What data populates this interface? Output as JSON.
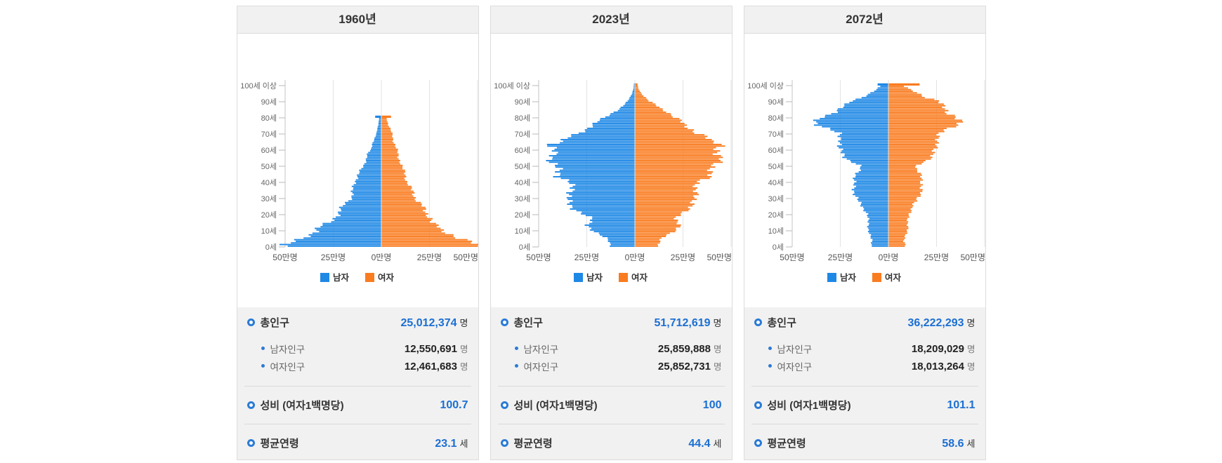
{
  "colors": {
    "male": "#1E88E5",
    "female": "#F97C20",
    "value_blue": "#1b6fd3"
  },
  "labels": {
    "total": "총인구",
    "male_pop": "남자인구",
    "female_pop": "여자인구",
    "sex_ratio": "성비 (여자1백명당)",
    "avg_age": "평균연령",
    "person_unit": "명",
    "age_unit": "세",
    "legend_male": "남자",
    "legend_female": "여자"
  },
  "panels": [
    {
      "title": "1960년",
      "total": "25,012,374",
      "male": "12,550,691",
      "female": "12,461,683",
      "sex_ratio": "100.7",
      "avg_age": "23.1"
    },
    {
      "title": "2023년",
      "total": "51,712,619",
      "male": "25,859,888",
      "female": "25,852,731",
      "sex_ratio": "100",
      "avg_age": "44.4"
    },
    {
      "title": "2072년",
      "total": "36,222,293",
      "male": "18,209,029",
      "female": "18,013,264",
      "sex_ratio": "101.1",
      "avg_age": "58.6"
    }
  ],
  "chart_data": [
    {
      "type": "population-pyramid",
      "title": "1960년",
      "x_axis": {
        "labels": [
          "50만명",
          "25만명",
          "0만명",
          "25만명",
          "50만명"
        ],
        "max_abs": 50,
        "unit": "만명"
      },
      "y_axis": {
        "labels_bottom_to_top": [
          "0세",
          "10세",
          "20세",
          "30세",
          "40세",
          "50세",
          "60세",
          "70세",
          "80세",
          "90세",
          "100세 이상"
        ],
        "range": [
          0,
          100
        ]
      },
      "legend": [
        {
          "name": "남자",
          "color": "#1E88E5"
        },
        {
          "name": "여자",
          "color": "#F97C20"
        }
      ],
      "series": {
        "unit": "만명",
        "anchor_ages": [
          0,
          1,
          3,
          5,
          8,
          10,
          12,
          14,
          15,
          17,
          19,
          22,
          25,
          28,
          30,
          33,
          35,
          38,
          40,
          43,
          45,
          48,
          50,
          53,
          55,
          58,
          60,
          63,
          65,
          68,
          70,
          73,
          75,
          77,
          79,
          80
        ],
        "male": [
          48.5,
          49.5,
          44,
          40,
          36,
          34,
          32,
          28,
          25.5,
          24.5,
          23,
          21.5,
          19.5,
          17,
          15.5,
          15,
          14.5,
          14,
          13.5,
          12.5,
          11.5,
          10,
          9,
          8,
          7.5,
          6.5,
          5,
          4.8,
          4,
          2.8,
          2.3,
          1.9,
          1.5,
          1.2,
          1,
          2.8
        ],
        "female": [
          48,
          50,
          44.5,
          39.5,
          35,
          31.5,
          29.5,
          26.5,
          25.5,
          25.5,
          24.5,
          22.5,
          21,
          18.5,
          17.5,
          16.5,
          15.5,
          14,
          13,
          12.5,
          12,
          11,
          10.5,
          9.5,
          8.5,
          8.2,
          8,
          7,
          6,
          5.5,
          5.3,
          4.5,
          3.5,
          3,
          2.5,
          4.5
        ]
      }
    },
    {
      "type": "population-pyramid",
      "title": "2023년",
      "x_axis": {
        "labels": [
          "50만명",
          "25만명",
          "0만명",
          "25만명",
          "50만명"
        ],
        "max_abs": 50,
        "unit": "만명"
      },
      "y_axis": {
        "labels_bottom_to_top": [
          "0세",
          "10세",
          "20세",
          "30세",
          "40세",
          "50세",
          "60세",
          "70세",
          "80세",
          "90세",
          "100세 이상"
        ],
        "range": [
          0,
          100
        ]
      },
      "legend": [
        {
          "name": "남자",
          "color": "#1E88E5"
        },
        {
          "name": "여자",
          "color": "#F97C20"
        }
      ],
      "series": {
        "unit": "만명",
        "anchor_ages": [
          0,
          3,
          5,
          8,
          10,
          13,
          15,
          17,
          20,
          23,
          25,
          28,
          30,
          33,
          35,
          38,
          40,
          43,
          45,
          48,
          50,
          52,
          54,
          55,
          57,
          60,
          62,
          63,
          65,
          68,
          70,
          72,
          75,
          78,
          80,
          83,
          85,
          88,
          90,
          93,
          95,
          98,
          100
        ],
        "male": [
          12,
          13,
          15,
          20,
          22,
          24,
          23,
          22.5,
          27,
          31,
          33,
          35,
          35,
          33,
          31,
          33,
          35,
          40,
          38,
          39,
          42,
          45,
          44,
          42,
          40,
          42,
          46,
          45,
          37,
          33,
          29,
          26,
          22,
          18,
          15,
          11,
          8,
          5,
          3.5,
          2,
          1.2,
          0.5,
          0.3
        ],
        "female": [
          11.5,
          12.5,
          14,
          19,
          21,
          22.5,
          22,
          21.5,
          24,
          27,
          29,
          31,
          32,
          31,
          30,
          32,
          34,
          39,
          37.5,
          39,
          42,
          44.5,
          45,
          43,
          41,
          43,
          46,
          46.5,
          39,
          36,
          32,
          30,
          26,
          23,
          20,
          17,
          14,
          10,
          7,
          4.5,
          3,
          1.5,
          1.2
        ]
      }
    },
    {
      "type": "population-pyramid",
      "title": "2072년",
      "x_axis": {
        "labels": [
          "50만명",
          "25만명",
          "0만명",
          "25만명",
          "50만명"
        ],
        "max_abs": 50,
        "unit": "만명"
      },
      "y_axis": {
        "labels_bottom_to_top": [
          "0세",
          "10세",
          "20세",
          "30세",
          "40세",
          "50세",
          "60세",
          "70세",
          "80세",
          "90세",
          "100세 이상"
        ],
        "range": [
          0,
          100
        ]
      },
      "legend": [
        {
          "name": "남자",
          "color": "#1E88E5"
        },
        {
          "name": "여자",
          "color": "#F97C20"
        }
      ],
      "series": {
        "unit": "만명",
        "anchor_ages": [
          0,
          3,
          5,
          10,
          15,
          20,
          25,
          28,
          30,
          33,
          35,
          38,
          40,
          43,
          45,
          48,
          50,
          53,
          55,
          58,
          60,
          62,
          63,
          65,
          68,
          70,
          72,
          75,
          77,
          80,
          82,
          85,
          88,
          90,
          92,
          95,
          97,
          99,
          100
        ],
        "male": [
          8.5,
          8.5,
          9,
          10,
          10.5,
          10.5,
          14,
          15.5,
          16,
          17.5,
          18,
          18,
          17.5,
          17,
          16,
          14.5,
          15,
          20,
          22,
          24,
          25.5,
          26,
          25,
          24,
          25,
          26,
          30,
          36,
          37,
          35,
          30,
          25,
          21,
          19,
          14,
          9,
          6,
          4,
          5.5
        ],
        "female": [
          8.5,
          8,
          8.5,
          9.5,
          10,
          10.5,
          12.5,
          14.5,
          15,
          16.5,
          17,
          17.5,
          17,
          16.5,
          16,
          14.5,
          15,
          19.5,
          21.5,
          23.5,
          24.5,
          25.5,
          25,
          24,
          25.5,
          27,
          30,
          35,
          36.5,
          35.5,
          32,
          29,
          27,
          26,
          20,
          15,
          11,
          8,
          15.5
        ]
      }
    }
  ]
}
